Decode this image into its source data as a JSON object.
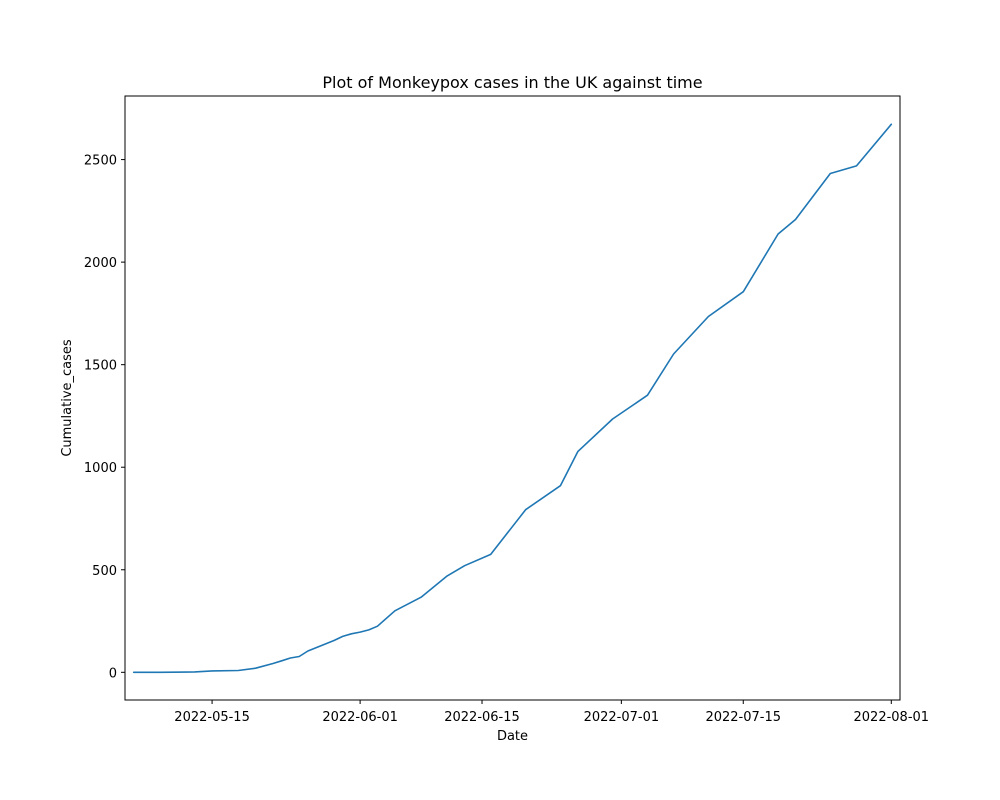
{
  "chart_data": {
    "type": "line",
    "title": "Plot of Monkeypox cases in the UK against time",
    "xlabel": "Date",
    "ylabel": "Cumulative_cases",
    "x_type": "date",
    "xlim": [
      "2022-05-05",
      "2022-08-02"
    ],
    "ylim": [
      -135,
      2810
    ],
    "x_ticks": [
      "2022-05-15",
      "2022-06-01",
      "2022-06-15",
      "2022-07-01",
      "2022-07-15",
      "2022-08-01"
    ],
    "y_ticks": [
      0,
      500,
      1000,
      1500,
      2000,
      2500
    ],
    "grid": false,
    "series": [
      {
        "color": "#1f77b4",
        "x": [
          "2022-05-06",
          "2022-05-09",
          "2022-05-12",
          "2022-05-13",
          "2022-05-15",
          "2022-05-18",
          "2022-05-20",
          "2022-05-22",
          "2022-05-23",
          "2022-05-24",
          "2022-05-25",
          "2022-05-26",
          "2022-05-28",
          "2022-05-29",
          "2022-05-30",
          "2022-05-31",
          "2022-06-01",
          "2022-06-02",
          "2022-06-03",
          "2022-06-05",
          "2022-06-08",
          "2022-06-11",
          "2022-06-13",
          "2022-06-16",
          "2022-06-20",
          "2022-06-24",
          "2022-06-26",
          "2022-06-30",
          "2022-07-04",
          "2022-07-07",
          "2022-07-11",
          "2022-07-15",
          "2022-07-19",
          "2022-07-21",
          "2022-07-25",
          "2022-07-28",
          "2022-08-01"
        ],
        "y": [
          0,
          0,
          1,
          2,
          7,
          9,
          20,
          43,
          56,
          70,
          77,
          104,
          138,
          155,
          175,
          188,
          196,
          207,
          225,
          300,
          366,
          470,
          520,
          575,
          793,
          910,
          1076,
          1235,
          1351,
          1552,
          1735,
          1856,
          2137,
          2208,
          2432,
          2469,
          2672
        ]
      }
    ]
  }
}
